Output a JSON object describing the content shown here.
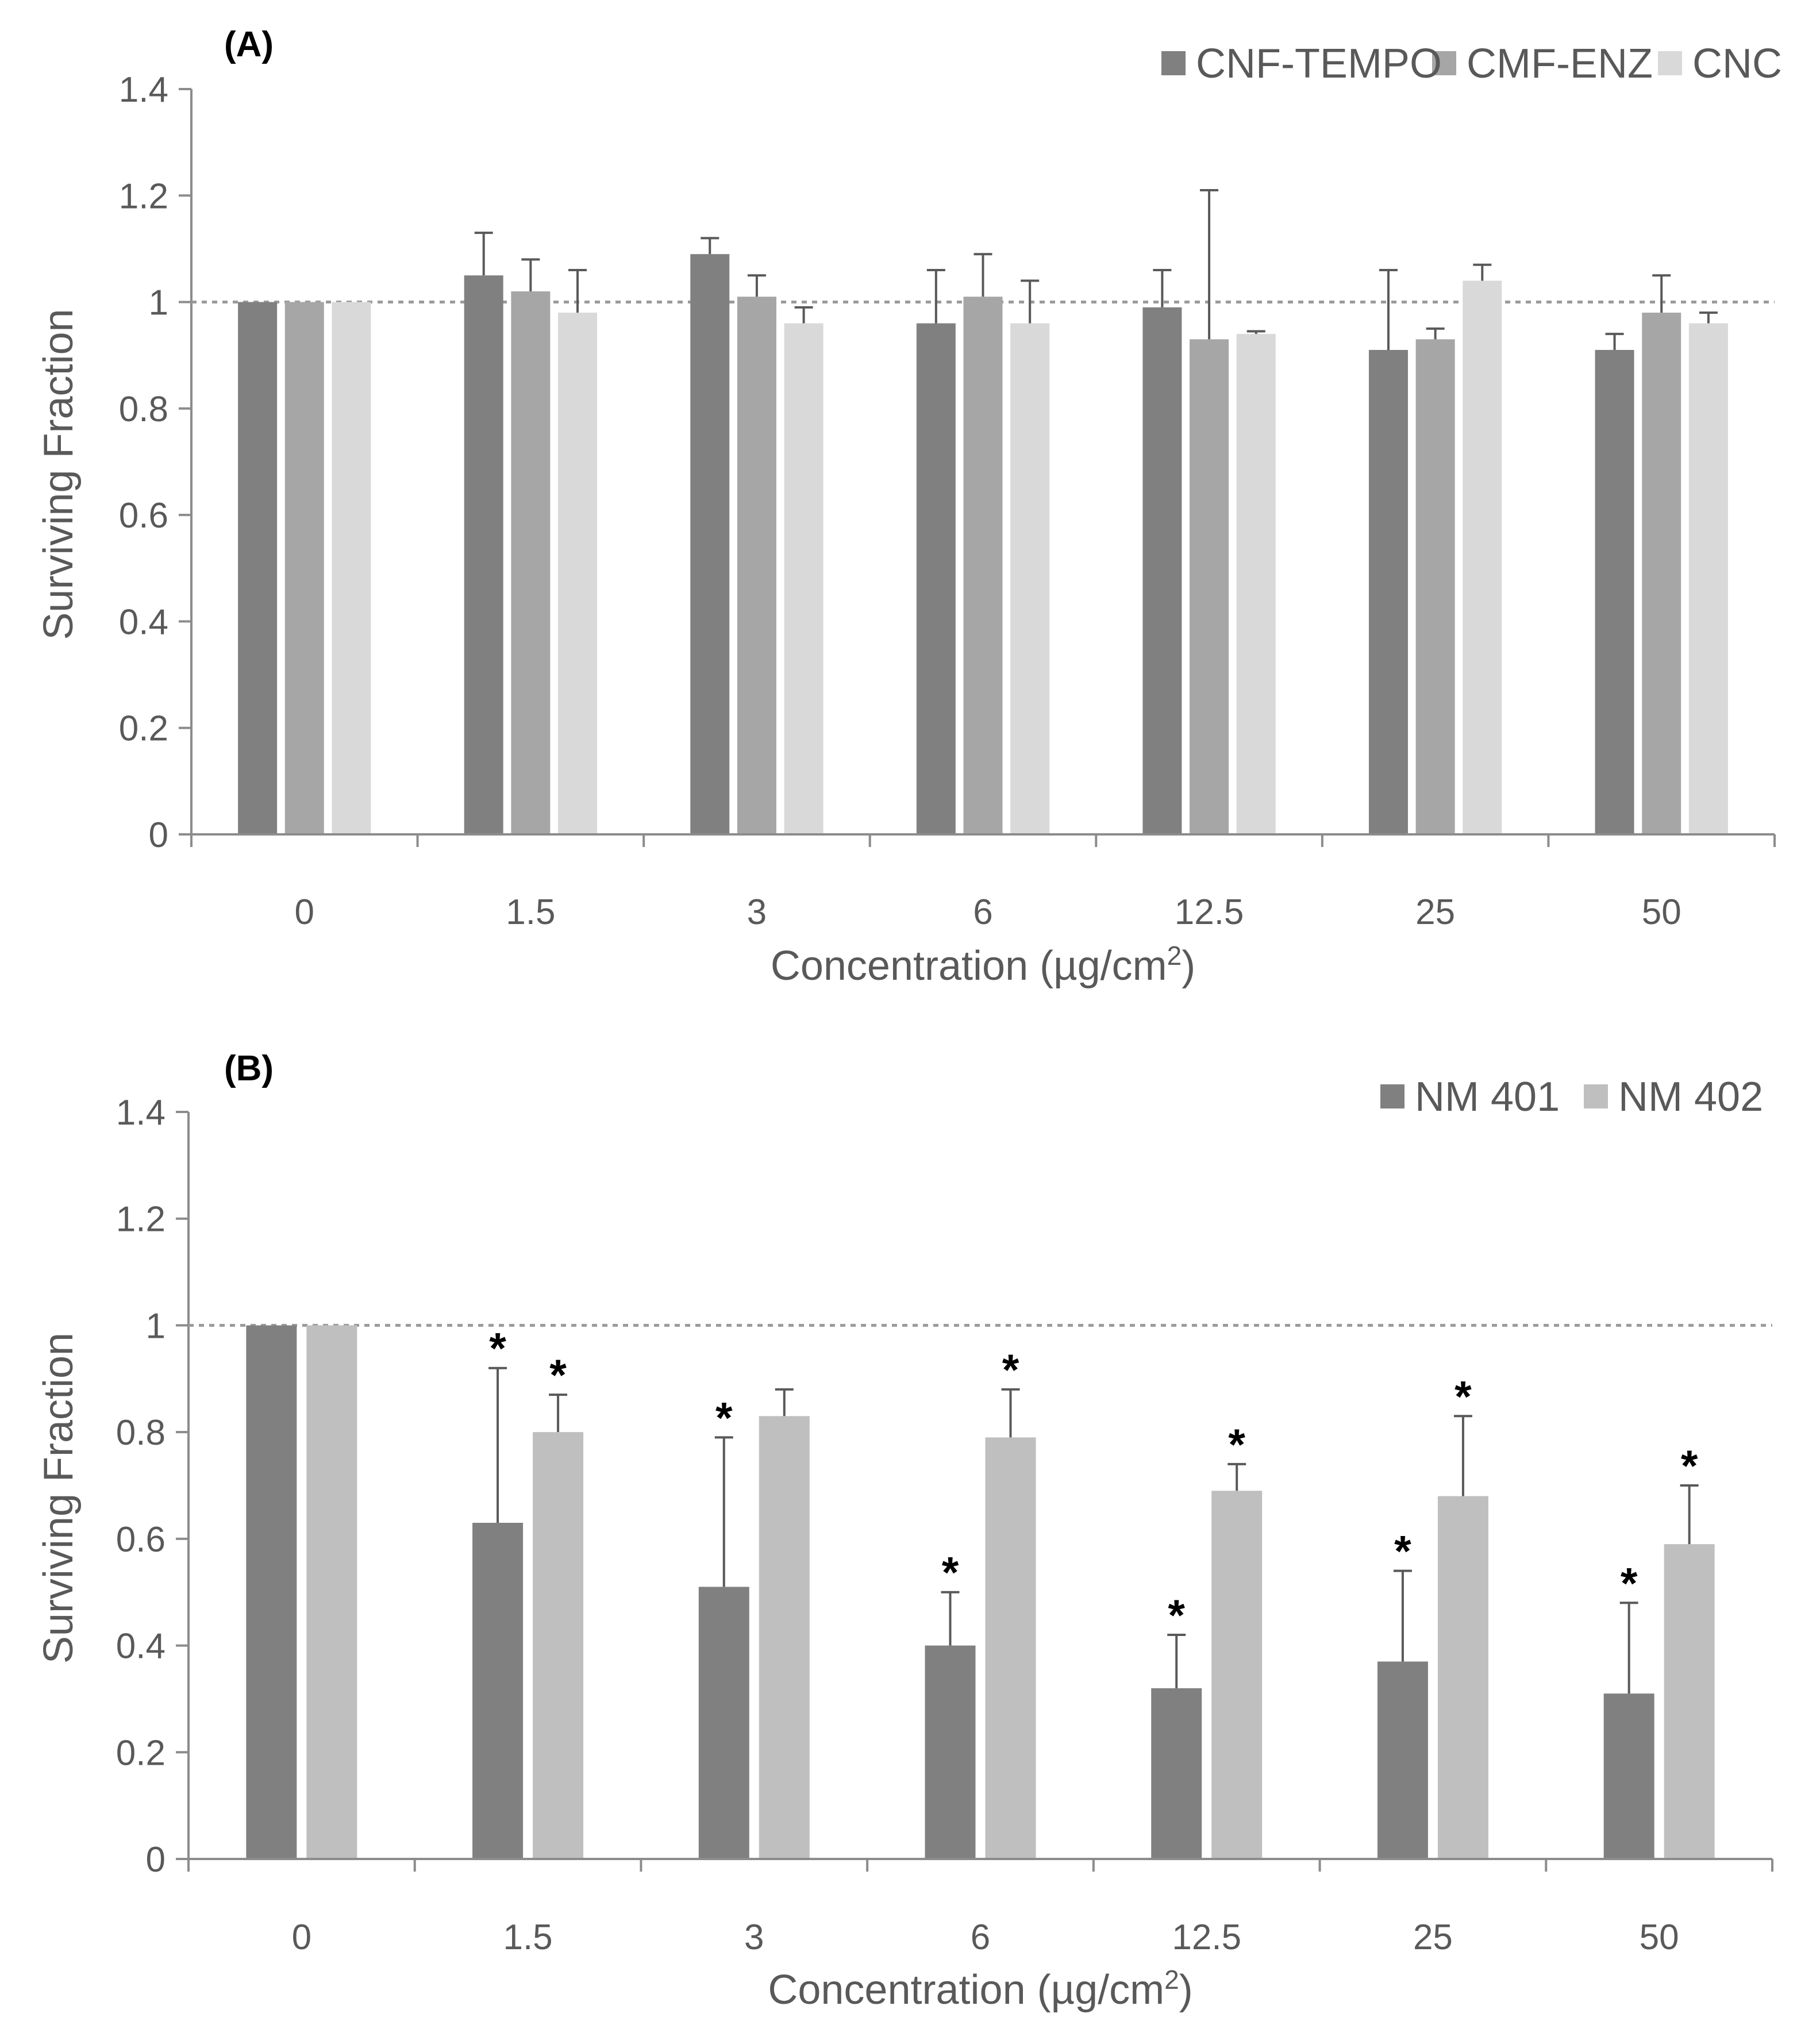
{
  "chart_data": [
    {
      "type": "bar",
      "panel": "(A)",
      "title": "",
      "xlabel": "Concentration (µg/cm",
      "xlabel_superscript": "2",
      "xlabel_suffix": ")",
      "ylabel": "Surviving Fraction",
      "ylim": [
        0,
        1.4
      ],
      "yticks": [
        "0",
        "0.2",
        "0.4",
        "0.6",
        "0.8",
        "1",
        "1.2",
        "1.4"
      ],
      "reference_line": 1,
      "legend_position": "top-right",
      "categories": [
        "0",
        "1.5",
        "3",
        "6",
        "12.5",
        "25",
        "50"
      ],
      "series": [
        {
          "name": "CNF-TEMPO",
          "color": "#808080",
          "values": [
            1.0,
            1.05,
            1.09,
            0.96,
            0.99,
            0.91,
            0.91
          ],
          "errors": [
            0.0,
            0.08,
            0.03,
            0.1,
            0.07,
            0.15,
            0.03
          ],
          "significant": [
            false,
            false,
            false,
            false,
            false,
            false,
            false
          ]
        },
        {
          "name": "CMF-ENZ",
          "color": "#a6a6a6",
          "values": [
            1.0,
            1.02,
            1.01,
            1.01,
            0.93,
            0.93,
            0.98
          ],
          "errors": [
            0.0,
            0.06,
            0.04,
            0.08,
            0.28,
            0.02,
            0.07
          ],
          "significant": [
            false,
            false,
            false,
            false,
            false,
            false,
            false
          ]
        },
        {
          "name": "CNC",
          "color": "#d9d9d9",
          "values": [
            1.0,
            0.98,
            0.96,
            0.96,
            0.94,
            1.04,
            0.96
          ],
          "errors": [
            0.0,
            0.08,
            0.03,
            0.08,
            0.005,
            0.03,
            0.02
          ],
          "significant": [
            false,
            false,
            false,
            false,
            false,
            false,
            false
          ]
        }
      ]
    },
    {
      "type": "bar",
      "panel": "(B)",
      "title": "",
      "xlabel": "Concentration (µg/cm",
      "xlabel_superscript": "2",
      "xlabel_suffix": ")",
      "ylabel": "Surviving Fraction",
      "ylim": [
        0,
        1.4
      ],
      "yticks": [
        "0",
        "0.2",
        "0.4",
        "0.6",
        "0.8",
        "1",
        "1.2",
        "1.4"
      ],
      "reference_line": 1,
      "legend_position": "top-right",
      "significance_marker": "*",
      "categories": [
        "0",
        "1.5",
        "3",
        "6",
        "12.5",
        "25",
        "50"
      ],
      "series": [
        {
          "name": "NM 401",
          "color": "#808080",
          "values": [
            1.0,
            0.63,
            0.51,
            0.4,
            0.32,
            0.37,
            0.31
          ],
          "errors": [
            0.0,
            0.29,
            0.28,
            0.1,
            0.1,
            0.17,
            0.17
          ],
          "significant": [
            false,
            true,
            true,
            true,
            true,
            true,
            true
          ]
        },
        {
          "name": "NM 402",
          "color": "#bfbfbf",
          "values": [
            1.0,
            0.8,
            0.83,
            0.79,
            0.69,
            0.68,
            0.59
          ],
          "errors": [
            0.0,
            0.07,
            0.05,
            0.09,
            0.05,
            0.15,
            0.11
          ],
          "significant": [
            false,
            true,
            false,
            true,
            true,
            true,
            true
          ]
        }
      ]
    }
  ]
}
